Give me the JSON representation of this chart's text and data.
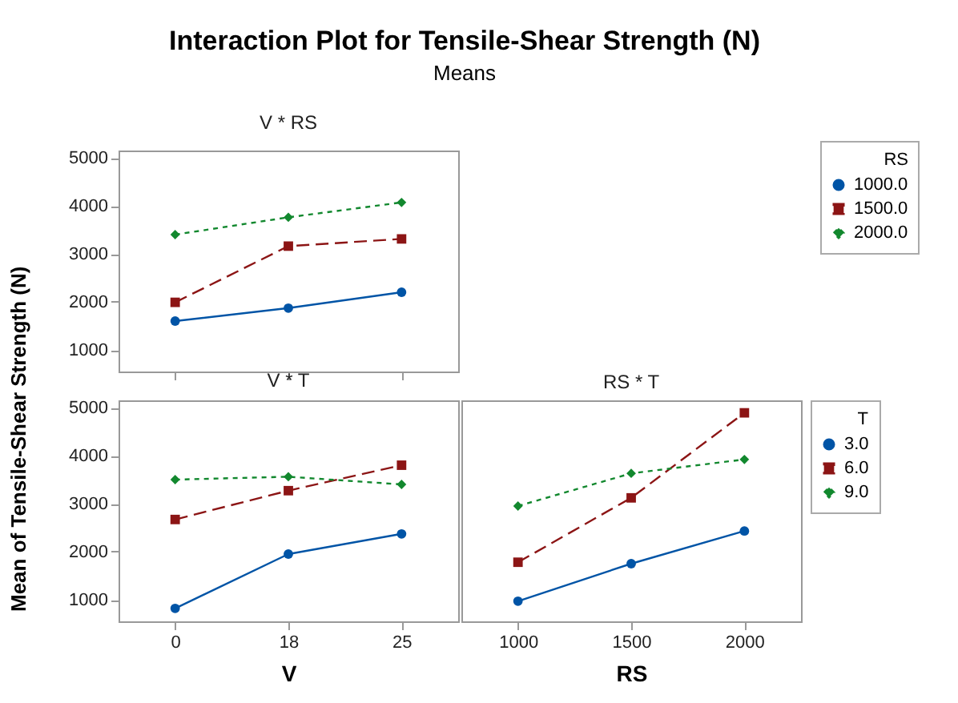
{
  "chart_data": [
    {
      "type": "other",
      "title": "Interaction Plot for Tensile-Shear Strength (N)",
      "subtitle": "Means"
    },
    {
      "type": "line",
      "title": "V * RS",
      "categories": [
        "0",
        "18",
        "25"
      ],
      "ylim": [
        550,
        5150
      ],
      "yticks": [
        1000,
        2000,
        3000,
        4000,
        5000
      ],
      "tick_labels": "y",
      "grid": false,
      "legend": "right",
      "legend_title": "RS",
      "series": [
        {
          "name": "1000.0",
          "color": "#0054a6",
          "marker": "circle",
          "line_style": "solid",
          "values": [
            1600,
            1870,
            2200
          ]
        },
        {
          "name": "1500.0",
          "color": "#8c1515",
          "marker": "square",
          "line_style": "dashed",
          "values": [
            1990,
            3160,
            3310
          ]
        },
        {
          "name": "2000.0",
          "color": "#12882e",
          "marker": "diamond",
          "line_style": "dotted",
          "values": [
            3400,
            3760,
            4070
          ]
        }
      ]
    },
    {
      "type": "line",
      "title": "V * T",
      "xlabel": "V",
      "ylabel": "Mean of Tensile-Shear Strength (N)",
      "categories": [
        "0",
        "18",
        "25"
      ],
      "ylim": [
        550,
        5150
      ],
      "yticks": [
        1000,
        2000,
        3000,
        4000,
        5000
      ],
      "grid": false,
      "legend": false,
      "series": [
        {
          "color": "#0054a6",
          "marker": "circle",
          "line_style": "solid",
          "values": [
            820,
            1950,
            2370
          ]
        },
        {
          "color": "#8c1515",
          "marker": "square",
          "line_style": "dashed",
          "values": [
            2670,
            3270,
            3800
          ]
        },
        {
          "color": "#12882e",
          "marker": "diamond",
          "line_style": "dotted",
          "values": [
            3500,
            3560,
            3400
          ]
        }
      ]
    },
    {
      "type": "line",
      "title": "RS * T",
      "xlabel": "RS",
      "categories": [
        "1000",
        "1500",
        "2000"
      ],
      "ylim": [
        550,
        5150
      ],
      "yticks": [
        1000,
        2000,
        3000,
        4000,
        5000
      ],
      "tick_labels": "x",
      "grid": false,
      "legend": "right",
      "legend_title": "T",
      "series": [
        {
          "name": "3.0",
          "color": "#0054a6",
          "marker": "circle",
          "line_style": "solid",
          "values": [
            970,
            1750,
            2430
          ]
        },
        {
          "name": "6.0",
          "color": "#8c1515",
          "marker": "square",
          "line_style": "dashed",
          "values": [
            1780,
            3120,
            4890
          ]
        },
        {
          "name": "9.0",
          "color": "#12882e",
          "marker": "diamond",
          "line_style": "dotted",
          "values": [
            2950,
            3630,
            3920
          ]
        }
      ]
    }
  ]
}
